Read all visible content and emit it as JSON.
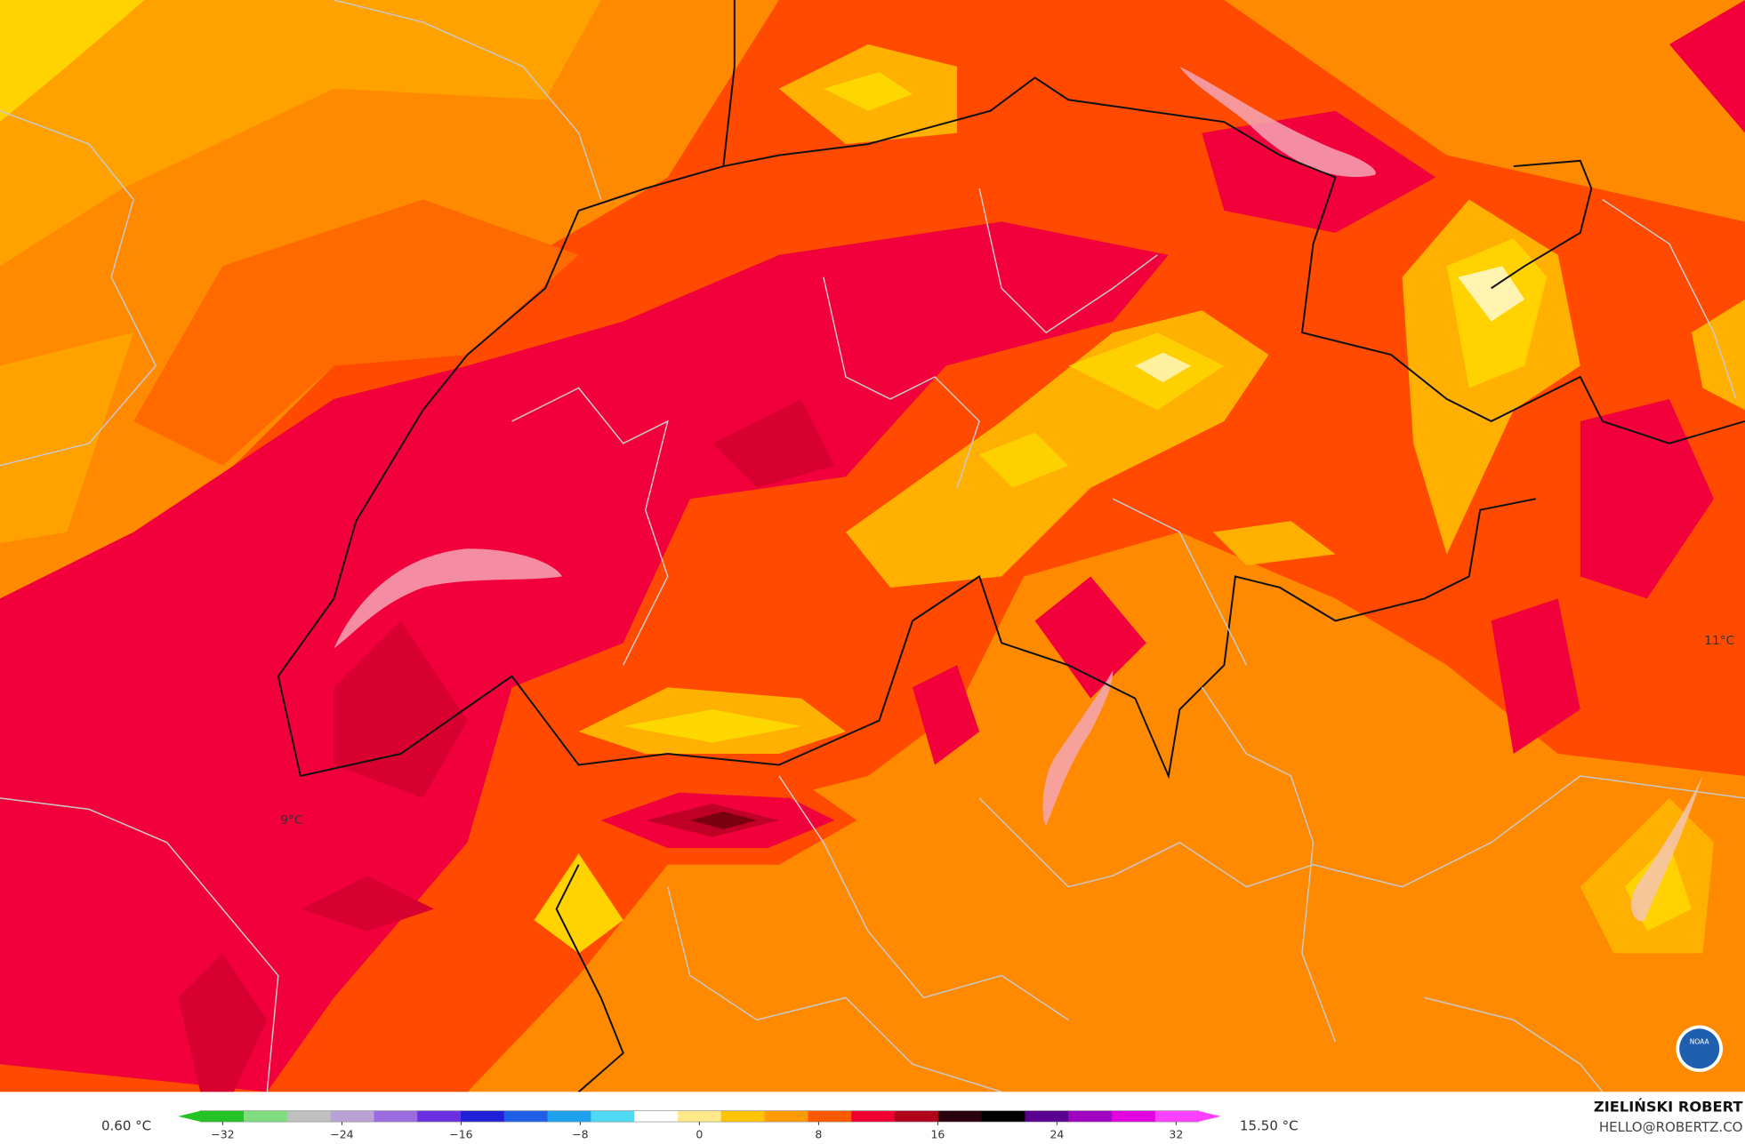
{
  "map": {
    "labels": [
      "9°C",
      "11°C"
    ]
  },
  "legend": {
    "min_label": "0.60 °C",
    "max_label": "15.50 °C",
    "ticks": [
      {
        "value": -32,
        "label": "−32"
      },
      {
        "value": -24,
        "label": "−24"
      },
      {
        "value": -16,
        "label": "−16"
      },
      {
        "value": -8,
        "label": "−8"
      },
      0,
      8,
      16,
      24,
      32
    ],
    "lim": [
      -35,
      35
    ],
    "colors": [
      "#22c322",
      "#7fdc7f",
      "#c0c0c0",
      "#b9a2d6",
      "#9b6ce0",
      "#6a2fe0",
      "#2020d8",
      "#1f5fe6",
      "#1fa2ee",
      "#4fd8f2",
      "#ffffff",
      "#ffe98a",
      "#ffc400",
      "#ff9a00",
      "#ff5a00",
      "#f00030",
      "#b0001a",
      "#2a0010",
      "#000000",
      "#5a0090",
      "#a000c0",
      "#e000e0",
      "#ff40ff"
    ]
  },
  "credit": {
    "name": "ZIELIŃSKI ROBERT",
    "email": "HELLO@ROBERTZ.CO",
    "logo": "NOAA"
  }
}
